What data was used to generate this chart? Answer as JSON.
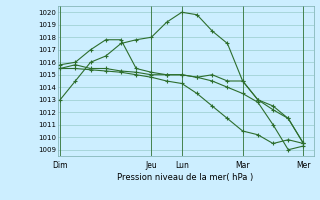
{
  "background_color": "#cceeff",
  "grid_color": "#99cccc",
  "line_color": "#2d6e2d",
  "xlabel": "Pression niveau de la mer( hPa )",
  "ylim": [
    1008.5,
    1020.5
  ],
  "yticks": [
    1009,
    1010,
    1011,
    1012,
    1013,
    1014,
    1015,
    1016,
    1017,
    1018,
    1019,
    1020
  ],
  "day_labels": [
    "Dim",
    "Jeu",
    "Lun",
    "Mar",
    "Mer"
  ],
  "day_positions": [
    0,
    36,
    48,
    72,
    96
  ],
  "xlim": [
    -1,
    100
  ],
  "lines": [
    {
      "x": [
        0,
        6,
        12,
        18,
        24,
        30,
        36,
        42,
        48,
        54,
        60,
        66,
        72,
        78,
        84,
        90,
        96
      ],
      "y": [
        1013.0,
        1014.5,
        1016.0,
        1016.5,
        1017.5,
        1017.8,
        1018.0,
        1019.2,
        1020.0,
        1019.8,
        1018.5,
        1017.5,
        1014.5,
        1013.0,
        1012.5,
        1011.5,
        1009.5
      ]
    },
    {
      "x": [
        0,
        6,
        12,
        18,
        24,
        30,
        36,
        42,
        48,
        54,
        60,
        66,
        72,
        78,
        84,
        90,
        96
      ],
      "y": [
        1015.8,
        1016.0,
        1017.0,
        1017.8,
        1017.8,
        1015.5,
        1015.2,
        1015.0,
        1015.0,
        1014.8,
        1015.0,
        1014.5,
        1014.5,
        1013.0,
        1012.2,
        1011.5,
        1009.5
      ]
    },
    {
      "x": [
        0,
        6,
        12,
        18,
        24,
        30,
        36,
        42,
        48,
        54,
        60,
        66,
        72,
        78,
        84,
        90,
        96
      ],
      "y": [
        1015.5,
        1015.8,
        1015.5,
        1015.5,
        1015.3,
        1015.2,
        1015.0,
        1015.0,
        1015.0,
        1014.8,
        1014.5,
        1014.0,
        1013.5,
        1012.8,
        1011.0,
        1009.0,
        1009.3
      ]
    },
    {
      "x": [
        0,
        6,
        12,
        18,
        24,
        30,
        36,
        42,
        48,
        54,
        60,
        66,
        72,
        78,
        84,
        90,
        96
      ],
      "y": [
        1015.5,
        1015.5,
        1015.4,
        1015.3,
        1015.2,
        1015.0,
        1014.8,
        1014.5,
        1014.3,
        1013.5,
        1012.5,
        1011.5,
        1010.5,
        1010.2,
        1009.5,
        1009.8,
        1009.5
      ]
    }
  ]
}
